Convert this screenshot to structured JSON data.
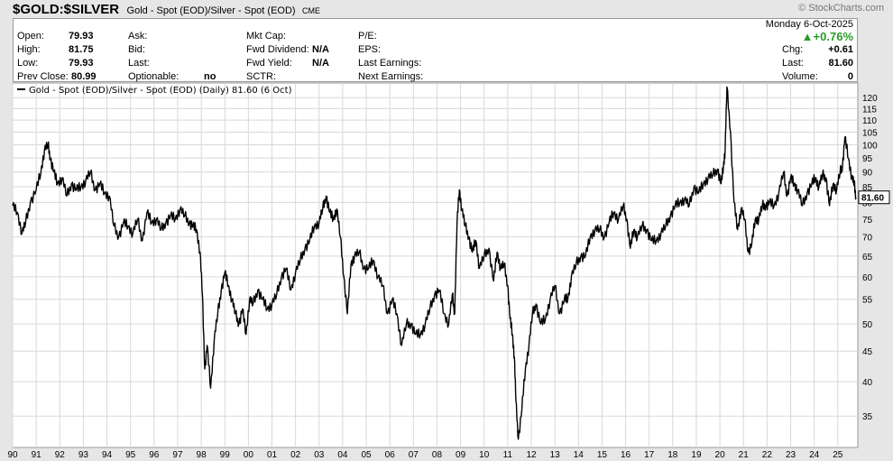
{
  "header": {
    "symbol": "$GOLD:$SILVER",
    "description": "Gold - Spot (EOD)/Silver - Spot (EOD)",
    "exchange": "CME",
    "brand": "© StockCharts.com"
  },
  "quote": {
    "open_label": "Open:",
    "open": "79.93",
    "high_label": "High:",
    "high": "81.75",
    "low_label": "Low:",
    "low": "79.93",
    "prev_close_label": "Prev Close:",
    "prev_close": "80.99",
    "ask_label": "Ask:",
    "bid_label": "Bid:",
    "last_label_mid": "Last:",
    "optionable_label": "Optionable:",
    "optionable": "no",
    "mkt_cap_label": "Mkt Cap:",
    "fwd_dividend_label": "Fwd Dividend:",
    "fwd_dividend": "N/A",
    "fwd_yield_label": "Fwd Yield:",
    "fwd_yield": "N/A",
    "sctr_label": "SCTR:",
    "pe_label": "P/E:",
    "eps_label": "EPS:",
    "last_earnings_label": "Last Earnings:",
    "next_earnings_label": "Next Earnings:",
    "date": "Monday  6-Oct-2025",
    "pct_change": "+0.76%",
    "chg_label": "Chg:",
    "chg": "+0.61",
    "last_label": "Last:",
    "last": "81.60",
    "volume_label": "Volume:",
    "volume": "0"
  },
  "colors": {
    "line": "#000000",
    "up": "#2a9a2a",
    "grid": "#d8d8d8",
    "panel_bg": "#ffffff",
    "page_bg": "#e6e6e6"
  },
  "chart_data": {
    "type": "line",
    "legend": "Gold - Spot (EOD)/Silver - Spot (EOD) (Daily) 81.60 (6 Oct)",
    "legend_placement": "top-left",
    "y_scale": "log",
    "ylim": [
      31,
      127
    ],
    "yticks": [
      35,
      40,
      45,
      50,
      55,
      60,
      65,
      70,
      75,
      80,
      85,
      90,
      95,
      100,
      105,
      110,
      115,
      120
    ],
    "ytick_labels": [
      "35",
      "40",
      "45",
      "50",
      "55",
      "60",
      "65",
      "70",
      "75",
      "80",
      "85",
      "90",
      "95",
      "100",
      "105",
      "110",
      "115",
      "120"
    ],
    "xlim": [
      1990.0,
      2025.85
    ],
    "xticks": [
      1990,
      1991,
      1992,
      1993,
      1994,
      1995,
      1996,
      1997,
      1998,
      1999,
      2000,
      2001,
      2002,
      2003,
      2004,
      2005,
      2006,
      2007,
      2008,
      2009,
      2010,
      2011,
      2012,
      2013,
      2014,
      2015,
      2016,
      2017,
      2018,
      2019,
      2020,
      2021,
      2022,
      2023,
      2024,
      2025
    ],
    "xtick_labels": [
      "90",
      "91",
      "92",
      "93",
      "94",
      "95",
      "96",
      "97",
      "98",
      "99",
      "00",
      "01",
      "02",
      "03",
      "04",
      "05",
      "06",
      "07",
      "08",
      "09",
      "10",
      "11",
      "12",
      "13",
      "14",
      "15",
      "16",
      "17",
      "18",
      "19",
      "20",
      "21",
      "22",
      "23",
      "24",
      "25"
    ],
    "grid": true,
    "last_value_label": "81.60",
    "last_value": 81.6,
    "series": [
      {
        "x": [
          1990.0,
          1990.2,
          1990.4,
          1990.55,
          1990.75,
          1991.0,
          1991.2,
          1991.35,
          1991.5,
          1991.6,
          1991.75,
          1991.9,
          1992.1,
          1992.3,
          1992.5,
          1992.7,
          1992.9,
          1993.1,
          1993.3,
          1993.5,
          1993.7,
          1993.9,
          1994.1,
          1994.3,
          1994.5,
          1994.7,
          1994.9,
          1995.1,
          1995.3,
          1995.5,
          1995.7,
          1995.9,
          1996.1,
          1996.3,
          1996.5,
          1996.7,
          1996.9,
          1997.1,
          1997.3,
          1997.5,
          1997.65,
          1997.8,
          1997.95,
          1998.05,
          1998.15,
          1998.25,
          1998.4,
          1998.55,
          1998.7,
          1998.85,
          1999.0,
          1999.15,
          1999.3,
          1999.45,
          1999.6,
          1999.75,
          1999.9,
          2000.05,
          2000.2,
          2000.4,
          2000.6,
          2000.8,
          2001.0,
          2001.2,
          2001.4,
          2001.6,
          2001.8,
          2002.0,
          2002.2,
          2002.4,
          2002.6,
          2002.8,
          2003.0,
          2003.15,
          2003.3,
          2003.45,
          2003.6,
          2003.75,
          2003.9,
          2004.05,
          2004.2,
          2004.35,
          2004.5,
          2004.7,
          2004.9,
          2005.1,
          2005.3,
          2005.5,
          2005.7,
          2005.9,
          2006.1,
          2006.3,
          2006.5,
          2006.7,
          2006.9,
          2007.1,
          2007.3,
          2007.5,
          2007.7,
          2007.9,
          2008.1,
          2008.3,
          2008.5,
          2008.65,
          2008.75,
          2008.85,
          2008.95,
          2009.05,
          2009.2,
          2009.35,
          2009.5,
          2009.65,
          2009.8,
          2010.0,
          2010.2,
          2010.4,
          2010.55,
          2010.7,
          2010.85,
          2011.0,
          2011.1,
          2011.2,
          2011.28,
          2011.35,
          2011.45,
          2011.6,
          2011.75,
          2011.9,
          2012.05,
          2012.2,
          2012.4,
          2012.6,
          2012.8,
          2013.0,
          2013.2,
          2013.4,
          2013.55,
          2013.7,
          2013.9,
          2014.1,
          2014.3,
          2014.5,
          2014.7,
          2014.9,
          2015.1,
          2015.3,
          2015.5,
          2015.7,
          2015.9,
          2016.05,
          2016.2,
          2016.35,
          2016.5,
          2016.7,
          2016.9,
          2017.1,
          2017.3,
          2017.5,
          2017.7,
          2017.9,
          2018.1,
          2018.3,
          2018.5,
          2018.7,
          2018.9,
          2019.1,
          2019.3,
          2019.5,
          2019.7,
          2019.9,
          2020.05,
          2020.15,
          2020.22,
          2020.3,
          2020.45,
          2020.6,
          2020.75,
          2020.9,
          2021.05,
          2021.2,
          2021.35,
          2021.5,
          2021.65,
          2021.8,
          2021.95,
          2022.1,
          2022.3,
          2022.5,
          2022.7,
          2022.85,
          2023.0,
          2023.15,
          2023.3,
          2023.5,
          2023.7,
          2023.9,
          2024.05,
          2024.2,
          2024.35,
          2024.5,
          2024.65,
          2024.8,
          2024.95,
          2025.1,
          2025.2,
          2025.3,
          2025.45,
          2025.6,
          2025.7,
          2025.77
        ],
        "y": [
          79,
          77,
          71,
          74,
          80,
          84,
          90,
          98,
          100,
          95,
          90,
          86,
          88,
          82,
          86,
          84,
          85,
          87,
          90,
          84,
          86,
          83,
          82,
          73,
          70,
          74,
          73,
          71,
          75,
          69,
          77,
          74,
          75,
          72,
          74,
          76,
          75,
          78,
          76,
          74,
          73,
          72,
          66,
          56,
          42,
          46,
          39,
          47,
          52,
          57,
          61,
          58,
          55,
          52,
          50,
          53,
          48,
          55,
          54,
          57,
          55,
          53,
          54,
          56,
          60,
          62,
          57,
          61,
          64,
          67,
          69,
          73,
          74,
          78,
          82,
          77,
          75,
          78,
          70,
          60,
          52,
          63,
          65,
          66,
          62,
          62,
          64,
          60,
          58,
          52,
          55,
          52,
          46,
          50,
          50,
          48,
          48,
          50,
          53,
          56,
          57,
          52,
          50,
          56,
          52,
          74,
          84,
          78,
          73,
          70,
          66,
          69,
          62,
          65,
          67,
          59,
          66,
          62,
          63,
          58,
          51,
          48,
          44,
          37,
          32,
          36,
          42,
          46,
          52,
          54,
          50,
          51,
          55,
          58,
          52,
          55,
          55,
          60,
          63,
          65,
          65,
          70,
          72,
          72,
          70,
          74,
          77,
          75,
          79,
          75,
          67,
          72,
          70,
          73,
          72,
          69,
          69,
          71,
          73,
          76,
          79,
          80,
          81,
          79,
          85,
          83,
          86,
          88,
          89,
          91,
          86,
          92,
          98,
          125,
          105,
          80,
          72,
          78,
          75,
          66,
          68,
          75,
          75,
          79,
          79,
          80,
          79,
          83,
          90,
          82,
          88,
          86,
          84,
          79,
          83,
          86,
          88,
          85,
          89,
          88,
          79,
          86,
          84,
          90,
          92,
          103,
          95,
          88,
          86,
          81.6
        ]
      }
    ]
  }
}
